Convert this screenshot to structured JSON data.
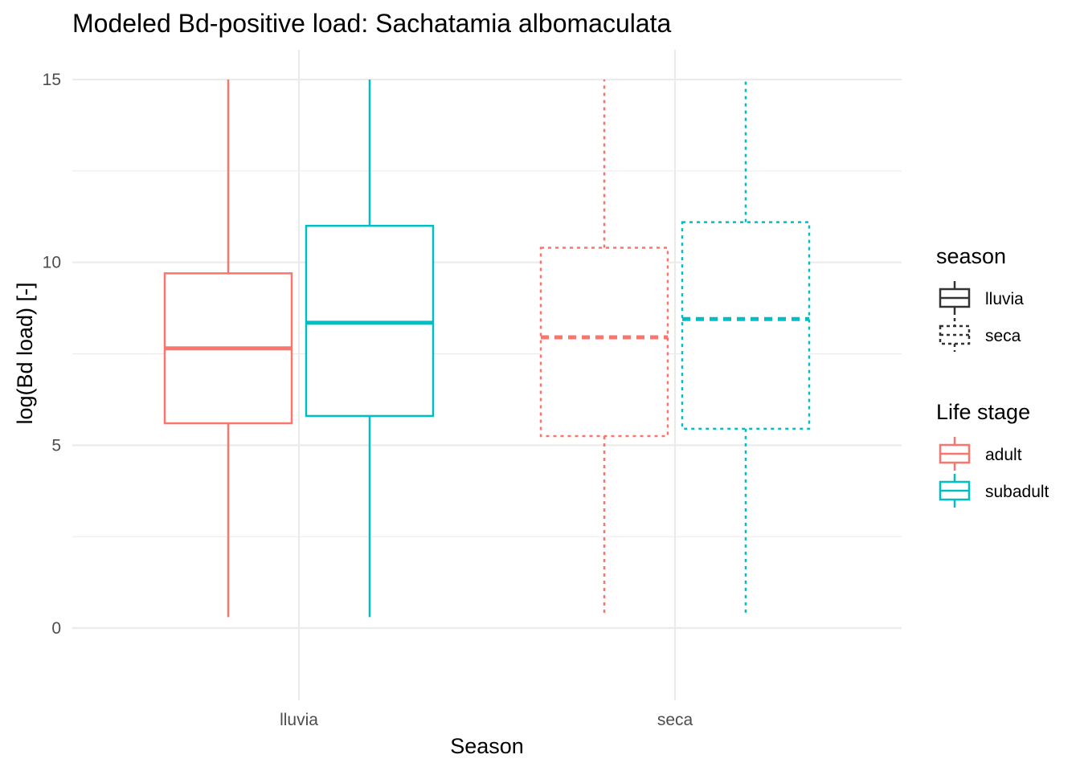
{
  "chart_data": {
    "type": "box",
    "title": "Modeled Bd-positive load: Sachatamia albomaculata",
    "xlabel": "Season",
    "ylabel": "log(Bd load) [-]",
    "categories": [
      "lluvia",
      "seca"
    ],
    "ylim": [
      -2,
      15.8
    ],
    "yticks": [
      0,
      5,
      10,
      15
    ],
    "ytick_labels": [
      "0",
      "5",
      "10",
      "15"
    ],
    "grid": true,
    "legend_position": "right",
    "series": [
      {
        "name": "adult",
        "color": "#F8766D",
        "boxes": [
          {
            "season": "lluvia",
            "linetype": "solid",
            "min": 0.3,
            "q1": 5.6,
            "median": 7.65,
            "q3": 9.7,
            "max": 15.0
          },
          {
            "season": "seca",
            "linetype": "dotted",
            "min": 0.4,
            "q1": 5.25,
            "median": 7.95,
            "q3": 10.4,
            "max": 15.0
          }
        ]
      },
      {
        "name": "subadult",
        "color": "#00BFC4",
        "boxes": [
          {
            "season": "lluvia",
            "linetype": "solid",
            "min": 0.3,
            "q1": 5.8,
            "median": 8.35,
            "q3": 11.0,
            "max": 15.0
          },
          {
            "season": "seca",
            "linetype": "dotted",
            "min": 0.35,
            "q1": 5.45,
            "median": 8.45,
            "q3": 11.1,
            "max": 15.0
          }
        ]
      }
    ],
    "legends": [
      {
        "title": "season",
        "items": [
          {
            "label": "lluvia",
            "linetype": "solid",
            "color": "#333333"
          },
          {
            "label": "seca",
            "linetype": "dotted",
            "color": "#333333"
          }
        ]
      },
      {
        "title": "Life stage",
        "items": [
          {
            "label": "adult",
            "linetype": "solid",
            "color": "#F8766D"
          },
          {
            "label": "subadult",
            "linetype": "solid",
            "color": "#00BFC4"
          }
        ]
      }
    ]
  }
}
